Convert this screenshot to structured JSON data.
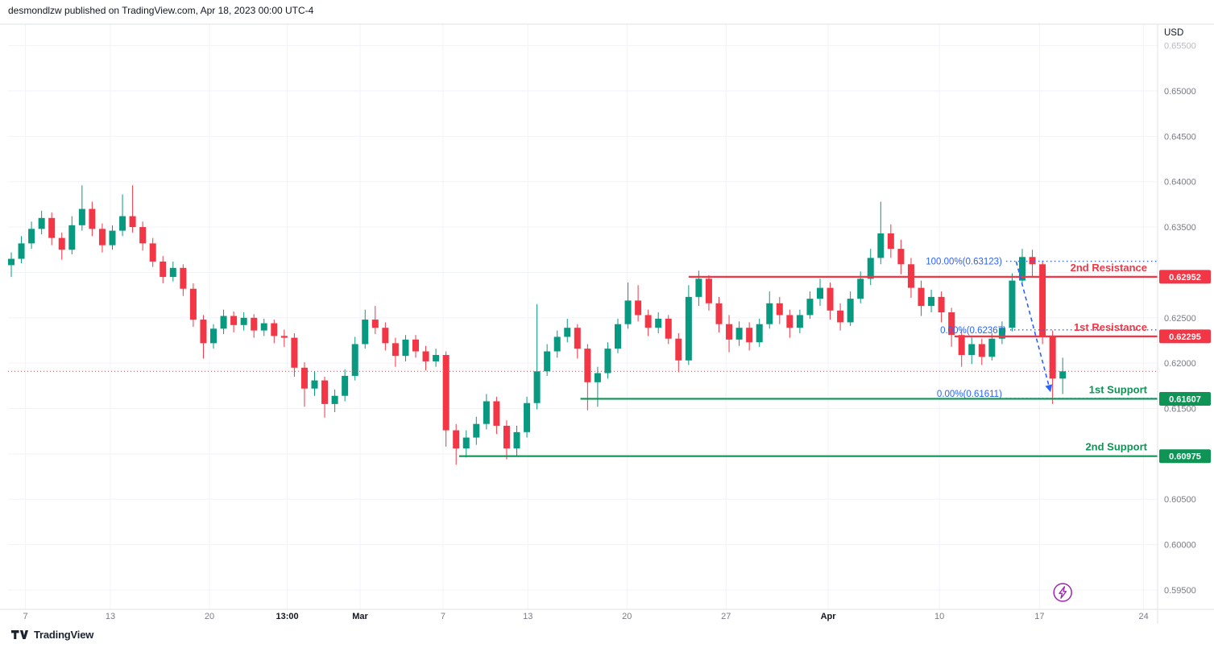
{
  "header": {
    "attribution": "desmondlzw published on TradingView.com, Apr 18, 2023 00:00 UTC-4"
  },
  "footer": {
    "brand": "TradingView"
  },
  "colors": {
    "up": "#089981",
    "down": "#f23645",
    "resistance": "#f23645",
    "support": "#0e9455",
    "fib": "#2962ff",
    "last_price_line": "#f23645",
    "grid": "#f0f3fa",
    "axis_border": "#dde0e6",
    "axis_text": "#787b86",
    "axis_text_strong": "#131722",
    "faded_tick": "#b7bac1",
    "tag_text": "#ffffff",
    "marker": "#9c27b0",
    "header_text": "#131722"
  },
  "chart_data": {
    "type": "candlestick",
    "currency_label": "USD",
    "last_price": 0.6191,
    "price_axis": {
      "grid_top": 0.655,
      "grid_bottom": 0.595,
      "step": 0.005,
      "ticks": [
        {
          "label": "0.65500",
          "price": 0.655,
          "faded": true
        },
        {
          "label": "0.65000",
          "price": 0.65
        },
        {
          "label": "0.64500",
          "price": 0.645
        },
        {
          "label": "0.64000",
          "price": 0.64
        },
        {
          "label": "0.63500",
          "price": 0.635
        },
        {
          "label": "0.62500",
          "price": 0.625
        },
        {
          "label": "0.62000",
          "price": 0.62
        },
        {
          "label": "0.61500",
          "price": 0.615
        },
        {
          "label": "0.60500",
          "price": 0.605
        },
        {
          "label": "0.60000",
          "price": 0.6
        },
        {
          "label": "0.59500",
          "price": 0.595
        }
      ]
    },
    "time_axis": {
      "ticks": [
        {
          "label": "7",
          "i": 1.4
        },
        {
          "label": "13",
          "i": 9.8
        },
        {
          "label": "20",
          "i": 19.6
        },
        {
          "label": "13:00",
          "i": 27.3,
          "strong": true
        },
        {
          "label": "Mar",
          "i": 34.5,
          "strong": true
        },
        {
          "label": "7",
          "i": 42.7
        },
        {
          "label": "13",
          "i": 51.1
        },
        {
          "label": "20",
          "i": 60.9
        },
        {
          "label": "27",
          "i": 70.7
        },
        {
          "label": "Apr",
          "i": 80.8,
          "strong": true
        },
        {
          "label": "10",
          "i": 91.8
        },
        {
          "label": "17",
          "i": 101.7
        },
        {
          "label": "24",
          "i": 112.0
        }
      ]
    },
    "levels": [
      {
        "name": "2nd Resistance",
        "price": 0.62952,
        "tag": "0.62952",
        "kind": "resistance",
        "from_i": 67.0
      },
      {
        "name": "1st Resistance",
        "price": 0.62295,
        "tag": "0.62295",
        "kind": "resistance",
        "from_i": 93.3
      },
      {
        "name": "1st Support",
        "price": 0.61607,
        "tag": "0.61607",
        "kind": "support",
        "from_i": 56.3
      },
      {
        "name": "2nd Support",
        "price": 0.60975,
        "tag": "0.60975",
        "kind": "support",
        "from_i": 44.3
      }
    ],
    "fib_annotations": [
      {
        "label": "100.00%(0.63123)",
        "price": 0.63123,
        "dots_from_i": 98.4,
        "label_dy": 4
      },
      {
        "label": "0.00%(0.62367)",
        "price": 0.62367,
        "dots_from_i": 98.8,
        "label_dy": 4
      },
      {
        "label": "0.00%(0.61611)",
        "price": 0.61611,
        "dots_from_i": 98.4,
        "label_dy": -2
      }
    ],
    "trend_arrow": {
      "from": {
        "i": 99.4,
        "price": 0.6312
      },
      "to": {
        "i": 102.8,
        "price": 0.6168
      }
    },
    "marker": {
      "symbol": "lightning",
      "i": 104
    },
    "candles": [
      [
        0.6308,
        0.6322,
        0.6295,
        0.6315
      ],
      [
        0.6315,
        0.634,
        0.631,
        0.6332
      ],
      [
        0.6332,
        0.6356,
        0.6326,
        0.6348
      ],
      [
        0.6348,
        0.6368,
        0.6342,
        0.636
      ],
      [
        0.636,
        0.6366,
        0.633,
        0.6338
      ],
      [
        0.6338,
        0.6344,
        0.6314,
        0.6325
      ],
      [
        0.6325,
        0.6362,
        0.632,
        0.6352
      ],
      [
        0.6352,
        0.6396,
        0.6346,
        0.637
      ],
      [
        0.637,
        0.6378,
        0.634,
        0.6348
      ],
      [
        0.6348,
        0.6354,
        0.6322,
        0.633
      ],
      [
        0.633,
        0.6352,
        0.6325,
        0.6346
      ],
      [
        0.6346,
        0.6386,
        0.634,
        0.6362
      ],
      [
        0.6362,
        0.6396,
        0.6344,
        0.635
      ],
      [
        0.635,
        0.6356,
        0.6324,
        0.6332
      ],
      [
        0.6332,
        0.6338,
        0.6306,
        0.6312
      ],
      [
        0.6312,
        0.6318,
        0.6288,
        0.6295
      ],
      [
        0.6295,
        0.6312,
        0.629,
        0.6305
      ],
      [
        0.6305,
        0.6309,
        0.6274,
        0.6282
      ],
      [
        0.6282,
        0.6288,
        0.624,
        0.6248
      ],
      [
        0.6248,
        0.6253,
        0.6205,
        0.6222
      ],
      [
        0.6222,
        0.6243,
        0.6216,
        0.6238
      ],
      [
        0.6238,
        0.6259,
        0.6232,
        0.6252
      ],
      [
        0.6252,
        0.6257,
        0.6234,
        0.6242
      ],
      [
        0.6242,
        0.6256,
        0.6236,
        0.625
      ],
      [
        0.625,
        0.6254,
        0.6228,
        0.6236
      ],
      [
        0.6236,
        0.6249,
        0.623,
        0.6244
      ],
      [
        0.6244,
        0.6248,
        0.6222,
        0.623
      ],
      [
        0.623,
        0.6237,
        0.6218,
        0.6228
      ],
      [
        0.6228,
        0.6233,
        0.6185,
        0.6195
      ],
      [
        0.6195,
        0.6201,
        0.6152,
        0.6172
      ],
      [
        0.6172,
        0.6191,
        0.6164,
        0.6181
      ],
      [
        0.6181,
        0.6185,
        0.614,
        0.6155
      ],
      [
        0.6155,
        0.6171,
        0.6146,
        0.6164
      ],
      [
        0.6164,
        0.6193,
        0.6158,
        0.6186
      ],
      [
        0.6186,
        0.6229,
        0.6181,
        0.6221
      ],
      [
        0.6221,
        0.6259,
        0.6216,
        0.6248
      ],
      [
        0.6248,
        0.6263,
        0.6232,
        0.6239
      ],
      [
        0.6239,
        0.6245,
        0.6214,
        0.6222
      ],
      [
        0.6222,
        0.6228,
        0.6196,
        0.6208
      ],
      [
        0.6208,
        0.6231,
        0.6202,
        0.6226
      ],
      [
        0.6226,
        0.6231,
        0.6206,
        0.6213
      ],
      [
        0.6213,
        0.6219,
        0.6192,
        0.6202
      ],
      [
        0.6202,
        0.6216,
        0.6196,
        0.6209
      ],
      [
        0.6209,
        0.6213,
        0.6108,
        0.6126
      ],
      [
        0.6126,
        0.6133,
        0.6088,
        0.6106
      ],
      [
        0.6106,
        0.6126,
        0.6096,
        0.6118
      ],
      [
        0.6118,
        0.6141,
        0.611,
        0.6133
      ],
      [
        0.6133,
        0.6166,
        0.6127,
        0.6158
      ],
      [
        0.6158,
        0.6163,
        0.6122,
        0.6131
      ],
      [
        0.6131,
        0.6137,
        0.6094,
        0.6106
      ],
      [
        0.6106,
        0.6131,
        0.6098,
        0.6124
      ],
      [
        0.6124,
        0.6163,
        0.6118,
        0.6156
      ],
      [
        0.6156,
        0.6265,
        0.6149,
        0.6191
      ],
      [
        0.6191,
        0.6221,
        0.6186,
        0.6213
      ],
      [
        0.6213,
        0.6236,
        0.6206,
        0.6229
      ],
      [
        0.6229,
        0.6249,
        0.6223,
        0.6239
      ],
      [
        0.6239,
        0.6243,
        0.6205,
        0.6216
      ],
      [
        0.6216,
        0.6221,
        0.6148,
        0.6179
      ],
      [
        0.6179,
        0.6196,
        0.6152,
        0.6189
      ],
      [
        0.6189,
        0.6223,
        0.6183,
        0.6216
      ],
      [
        0.6216,
        0.6249,
        0.6211,
        0.6243
      ],
      [
        0.6243,
        0.6289,
        0.6238,
        0.6269
      ],
      [
        0.6269,
        0.6286,
        0.6246,
        0.6253
      ],
      [
        0.6253,
        0.6259,
        0.623,
        0.6239
      ],
      [
        0.6239,
        0.6256,
        0.6233,
        0.6249
      ],
      [
        0.6249,
        0.6253,
        0.6221,
        0.6227
      ],
      [
        0.6227,
        0.6233,
        0.619,
        0.6203
      ],
      [
        0.6203,
        0.6286,
        0.6198,
        0.6273
      ],
      [
        0.6273,
        0.6302,
        0.6263,
        0.6293
      ],
      [
        0.6293,
        0.6297,
        0.6258,
        0.6266
      ],
      [
        0.6266,
        0.6273,
        0.6234,
        0.6243
      ],
      [
        0.6243,
        0.6253,
        0.6212,
        0.6226
      ],
      [
        0.6226,
        0.6246,
        0.6219,
        0.6239
      ],
      [
        0.6239,
        0.6245,
        0.6214,
        0.6223
      ],
      [
        0.6223,
        0.6249,
        0.6218,
        0.6243
      ],
      [
        0.6243,
        0.6279,
        0.6238,
        0.6266
      ],
      [
        0.6266,
        0.6273,
        0.6243,
        0.6253
      ],
      [
        0.6253,
        0.6259,
        0.6228,
        0.6239
      ],
      [
        0.6239,
        0.6259,
        0.6233,
        0.6253
      ],
      [
        0.6253,
        0.6279,
        0.6249,
        0.6271
      ],
      [
        0.6271,
        0.6293,
        0.6263,
        0.6283
      ],
      [
        0.6283,
        0.6289,
        0.6248,
        0.6258
      ],
      [
        0.6258,
        0.6266,
        0.6236,
        0.6245
      ],
      [
        0.6245,
        0.6279,
        0.6241,
        0.6271
      ],
      [
        0.6271,
        0.6301,
        0.6266,
        0.6293
      ],
      [
        0.6293,
        0.6326,
        0.6286,
        0.6316
      ],
      [
        0.6316,
        0.6378,
        0.6309,
        0.6343
      ],
      [
        0.6343,
        0.6353,
        0.6316,
        0.6326
      ],
      [
        0.6326,
        0.6336,
        0.6298,
        0.6309
      ],
      [
        0.6309,
        0.6316,
        0.6272,
        0.6283
      ],
      [
        0.6283,
        0.6291,
        0.6252,
        0.6263
      ],
      [
        0.6263,
        0.6281,
        0.6256,
        0.6273
      ],
      [
        0.6273,
        0.6279,
        0.6245,
        0.6256
      ],
      [
        0.6256,
        0.6261,
        0.6218,
        0.6231
      ],
      [
        0.6231,
        0.6237,
        0.6196,
        0.6209
      ],
      [
        0.6209,
        0.6229,
        0.6199,
        0.6221
      ],
      [
        0.6221,
        0.6227,
        0.6198,
        0.6207
      ],
      [
        0.6207,
        0.6233,
        0.6203,
        0.6227
      ],
      [
        0.6227,
        0.6246,
        0.6221,
        0.6239
      ],
      [
        0.6239,
        0.6299,
        0.6235,
        0.6291
      ],
      [
        0.6291,
        0.6326,
        0.6286,
        0.6317
      ],
      [
        0.6317,
        0.6325,
        0.6296,
        0.6309
      ],
      [
        0.6309,
        0.6313,
        0.6221,
        0.6229
      ],
      [
        0.6229,
        0.6236,
        0.6155,
        0.6183
      ],
      [
        0.6183,
        0.6206,
        0.6166,
        0.6191
      ]
    ]
  }
}
